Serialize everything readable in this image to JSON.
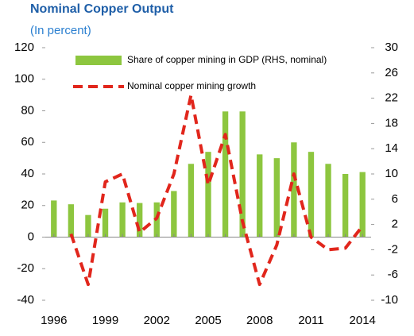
{
  "chart_data": {
    "type": "bar_line",
    "title": "Nominal Copper Output",
    "subtitle": "(In percent)",
    "categories": [
      "1996",
      null,
      null,
      "1999",
      null,
      null,
      "2002",
      null,
      null,
      "2005",
      null,
      null,
      "2008",
      null,
      null,
      "2011",
      null,
      null,
      "2014"
    ],
    "series": [
      {
        "name": "Share of copper mining in GDP (RHS, nominal)",
        "type": "bar",
        "axis": "y2",
        "color": "#8dc63f",
        "values": [
          5.8,
          5.2,
          3.5,
          4.5,
          5.5,
          5.4,
          5.5,
          7.3,
          11.6,
          13.5,
          19.9,
          19.9,
          13.1,
          12.5,
          15,
          13.5,
          11.6,
          10,
          10.3
        ]
      },
      {
        "name": "Nominal copper mining growth",
        "type": "line",
        "axis": "y",
        "color": "#e1261c",
        "values": [
          null,
          2,
          -30,
          35,
          40,
          3,
          12,
          40,
          90,
          33,
          65,
          10,
          -30,
          -5,
          40,
          0,
          -8,
          -7,
          7
        ]
      }
    ],
    "ylim": [
      -40,
      120
    ],
    "yticks": [
      -40,
      -20,
      0,
      20,
      40,
      60,
      80,
      100,
      120
    ],
    "y2lim": [
      -10,
      30
    ],
    "y2ticks": [
      -10,
      -6,
      -2,
      2,
      6,
      10,
      14,
      18,
      22,
      26,
      30
    ],
    "legend": "top-left"
  }
}
